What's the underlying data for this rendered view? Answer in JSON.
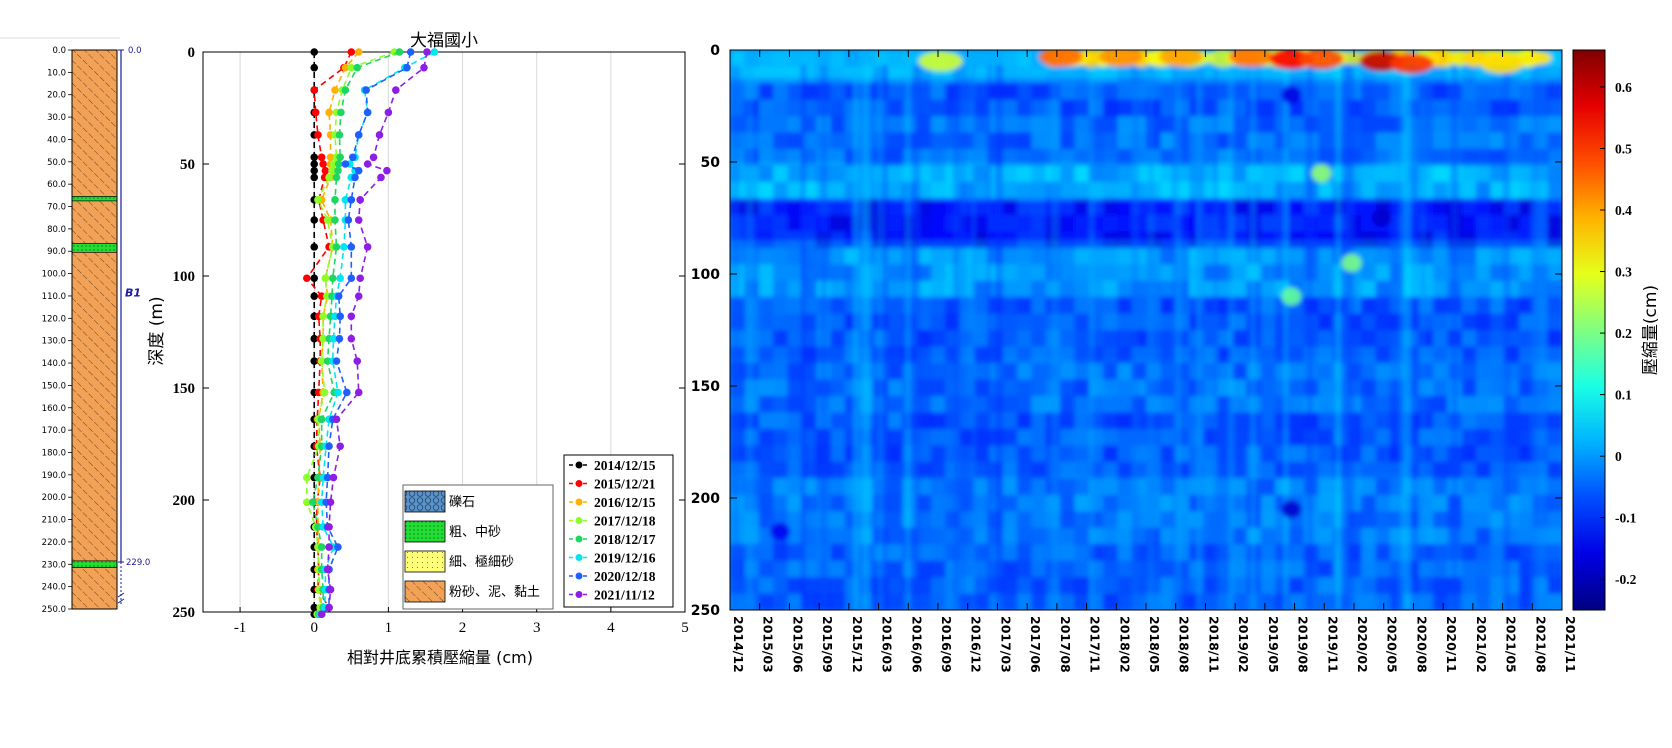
{
  "colors": {
    "axis": "#000000",
    "log_axis": "#1a1aa0",
    "grid": "#d9d9d9",
    "fine_sand_green": "#22dd33",
    "silt_clay_orange": "#f2a257"
  },
  "chart_data": [
    {
      "type": "bar",
      "name": "borehole-log",
      "depth_ticks": [
        "0.0",
        "10.0",
        "20.0",
        "30.0",
        "40.0",
        "50.0",
        "60.0",
        "70.0",
        "80.0",
        "90.0",
        "100.0",
        "110.0",
        "120.0",
        "130.0",
        "140.0",
        "150.0",
        "160.0",
        "170.0",
        "180.0",
        "190.0",
        "200.0",
        "210.0",
        "220.0",
        "230.0",
        "240.0",
        "250.0"
      ],
      "layers": [
        {
          "from": 0,
          "to": 65.5,
          "lith": "silt"
        },
        {
          "from": 65.5,
          "to": 67.5,
          "lith": "sand"
        },
        {
          "from": 67.5,
          "to": 86.5,
          "lith": "silt"
        },
        {
          "from": 86.5,
          "to": 90.5,
          "lith": "sand"
        },
        {
          "from": 90.5,
          "to": 228.5,
          "lith": "silt"
        },
        {
          "from": 228.5,
          "to": 231.5,
          "lith": "sand"
        },
        {
          "from": 231.5,
          "to": 250,
          "lith": "silt"
        }
      ],
      "well_labels": {
        "top": "0.0",
        "bottom": "229.0",
        "name": "B1"
      },
      "well_range": [
        0,
        229
      ]
    },
    {
      "type": "line",
      "name": "compaction-profile",
      "title": "大福國小",
      "xlabel": "相對井底累積壓縮量 (cm)",
      "ylabel": "深度 (m)",
      "xlim": [
        -1.5,
        5
      ],
      "ylim": [
        250,
        0
      ],
      "xticks": [
        -1,
        0,
        1,
        2,
        3,
        4,
        5
      ],
      "yticks": [
        0,
        50,
        100,
        150,
        200,
        250
      ],
      "depths": [
        0,
        7,
        17,
        27,
        37,
        47,
        50,
        53,
        56,
        66,
        75,
        87,
        101,
        109,
        118,
        128,
        138,
        152,
        164,
        176,
        190,
        201,
        212,
        221,
        231,
        240,
        248,
        251
      ],
      "series": [
        {
          "name": "2014/12/15",
          "color": "#000000",
          "values": [
            0,
            0,
            0,
            0,
            0,
            0,
            0,
            0,
            0,
            0,
            0,
            0,
            0,
            0,
            0,
            0,
            0,
            0,
            0,
            0,
            0,
            0,
            0,
            0,
            0,
            0,
            0,
            0
          ]
        },
        {
          "name": "2015/12/21",
          "color": "#ff0000",
          "values": [
            0.5,
            0.4,
            0,
            0.02,
            0.05,
            0.1,
            0.12,
            0.15,
            0.14,
            0.06,
            0.12,
            0.2,
            -0.1,
            0.1,
            0.06,
            0.08,
            0.08,
            0.06,
            0.04,
            0.03,
            0.08,
            0.04,
            0.03,
            0.05,
            0.06,
            0.05,
            0.2,
            0.05
          ]
        },
        {
          "name": "2016/12/15",
          "color": "#ffb000",
          "values": [
            0.6,
            0.42,
            0.28,
            0.2,
            0.22,
            0.22,
            0.22,
            0.25,
            0.22,
            0.1,
            0.22,
            0.25,
            0.15,
            0.18,
            0.12,
            0.12,
            0.1,
            0.12,
            0.06,
            0.08,
            0.06,
            0.05,
            0.05,
            0.06,
            0.05,
            0.08,
            0.1,
            0.05
          ]
        },
        {
          "name": "2017/12/18",
          "color": "#8cff2a",
          "values": [
            1.08,
            0.5,
            0.38,
            0.3,
            0.28,
            0.3,
            0.26,
            0.24,
            0.2,
            0.05,
            0.18,
            0.25,
            0.15,
            0.17,
            0.12,
            0.12,
            0.1,
            0.14,
            0.05,
            0.06,
            -0.1,
            -0.1,
            0.02,
            0.05,
            0.06,
            0.06,
            0.08,
            0.04
          ]
        },
        {
          "name": "2018/12/17",
          "color": "#1ed760",
          "values": [
            1.15,
            0.58,
            0.42,
            0.36,
            0.34,
            0.35,
            0.33,
            0.32,
            0.3,
            0.28,
            0.28,
            0.3,
            0.25,
            0.24,
            0.22,
            0.2,
            0.18,
            0.27,
            0.1,
            0.1,
            0.05,
            -0.02,
            0.05,
            0.1,
            0.1,
            0.12,
            0.12,
            0.06
          ]
        },
        {
          "name": "2019/12/16",
          "color": "#00e6f0",
          "values": [
            1.62,
            1.22,
            0.68,
            0.72,
            0.6,
            0.55,
            0.48,
            0.55,
            0.5,
            0.42,
            0.42,
            0.4,
            0.35,
            0.3,
            0.28,
            0.26,
            0.25,
            0.32,
            0.2,
            0.16,
            0.12,
            0.1,
            0.12,
            0.26,
            0.15,
            0.15,
            0.14,
            0.08
          ]
        },
        {
          "name": "2020/12/18",
          "color": "#1f5fff",
          "values": [
            1.3,
            1.25,
            0.7,
            0.72,
            0.6,
            0.52,
            0.42,
            0.6,
            0.55,
            0.5,
            0.46,
            0.5,
            0.5,
            0.33,
            0.35,
            0.34,
            0.3,
            0.44,
            0.25,
            0.2,
            0.18,
            0.16,
            0.18,
            0.32,
            0.2,
            0.2,
            0.2,
            0.1
          ]
        },
        {
          "name": "2021/11/12",
          "color": "#8c1ee6",
          "values": [
            1.52,
            1.48,
            1.1,
            1.0,
            0.88,
            0.8,
            0.72,
            0.98,
            0.9,
            0.62,
            0.6,
            0.72,
            0.62,
            0.6,
            0.5,
            0.5,
            0.58,
            0.6,
            0.3,
            0.35,
            0.26,
            0.22,
            0.2,
            0.2,
            0.18,
            0.22,
            0.2,
            0.1
          ]
        }
      ],
      "legend_placement": "bottom-right",
      "lithology_legend": [
        {
          "label": "礫石",
          "pattern": "gravel",
          "color": "#5b93c8"
        },
        {
          "label": "粗、中砂",
          "pattern": "coarse",
          "color": "#22dd33"
        },
        {
          "label": "細、極細砂",
          "pattern": "fine",
          "color": "#ffff7a"
        },
        {
          "label": "粉砂、泥、黏土",
          "pattern": "silt",
          "color": "#f2a257"
        }
      ]
    },
    {
      "type": "heatmap",
      "name": "compaction-heatmap",
      "x_ticks": [
        "2014/12",
        "2015/03",
        "2015/06",
        "2015/09",
        "2015/12",
        "2016/03",
        "2016/06",
        "2016/09",
        "2016/12",
        "2017/03",
        "2017/06",
        "2017/08",
        "2017/11",
        "2018/02",
        "2018/05",
        "2018/08",
        "2018/11",
        "2019/02",
        "2019/05",
        "2019/08",
        "2019/11",
        "2020/02",
        "2020/05",
        "2020/08",
        "2020/11",
        "2021/02",
        "2021/05",
        "2021/08",
        "2021/11"
      ],
      "yticks": [
        0,
        50,
        100,
        150,
        200,
        250
      ],
      "ylim": [
        250,
        0
      ],
      "zlabel": "壓縮量(cm)",
      "zlim": [
        -0.25,
        0.66
      ],
      "colorbar_ticks": [
        "-0.2",
        "-0.1",
        "0",
        "0.1",
        "0.2",
        "0.3",
        "0.4",
        "0.5",
        "0.6"
      ],
      "colorbar_values": [
        -0.2,
        -0.1,
        0,
        0.1,
        0.2,
        0.3,
        0.4,
        0.5,
        0.6
      ],
      "band_depths": [
        5,
        20,
        40,
        60,
        75,
        95,
        125,
        150,
        175,
        205,
        235
      ],
      "band_levels": [
        0.04,
        -0.06,
        -0.04,
        0.02,
        -0.12,
        0.0,
        -0.06,
        -0.04,
        -0.06,
        -0.03,
        -0.05
      ],
      "hotspots": [
        {
          "time": "2017/09",
          "depth": 3,
          "value": 0.45
        },
        {
          "time": "2018/03",
          "depth": 3,
          "value": 0.42
        },
        {
          "time": "2018/09",
          "depth": 3,
          "value": 0.4
        },
        {
          "time": "2019/04",
          "depth": 3,
          "value": 0.44
        },
        {
          "time": "2019/08",
          "depth": 4,
          "value": 0.55
        },
        {
          "time": "2019/11",
          "depth": 4,
          "value": 0.48
        },
        {
          "time": "2020/05",
          "depth": 5,
          "value": 0.6
        },
        {
          "time": "2020/08",
          "depth": 6,
          "value": 0.5
        },
        {
          "time": "2021/05",
          "depth": 6,
          "value": 0.35
        },
        {
          "time": "2016/09",
          "depth": 5,
          "value": 0.28
        },
        {
          "time": "2019/08",
          "depth": 205,
          "value": -0.18
        },
        {
          "time": "2015/05",
          "depth": 215,
          "value": -0.15
        },
        {
          "time": "2019/08",
          "depth": 20,
          "value": -0.16
        },
        {
          "time": "2020/05",
          "depth": 75,
          "value": -0.18
        },
        {
          "time": "2019/08",
          "depth": 110,
          "value": 0.18
        },
        {
          "time": "2020/02",
          "depth": 95,
          "value": 0.2
        },
        {
          "time": "2019/11",
          "depth": 55,
          "value": 0.22
        }
      ]
    }
  ]
}
